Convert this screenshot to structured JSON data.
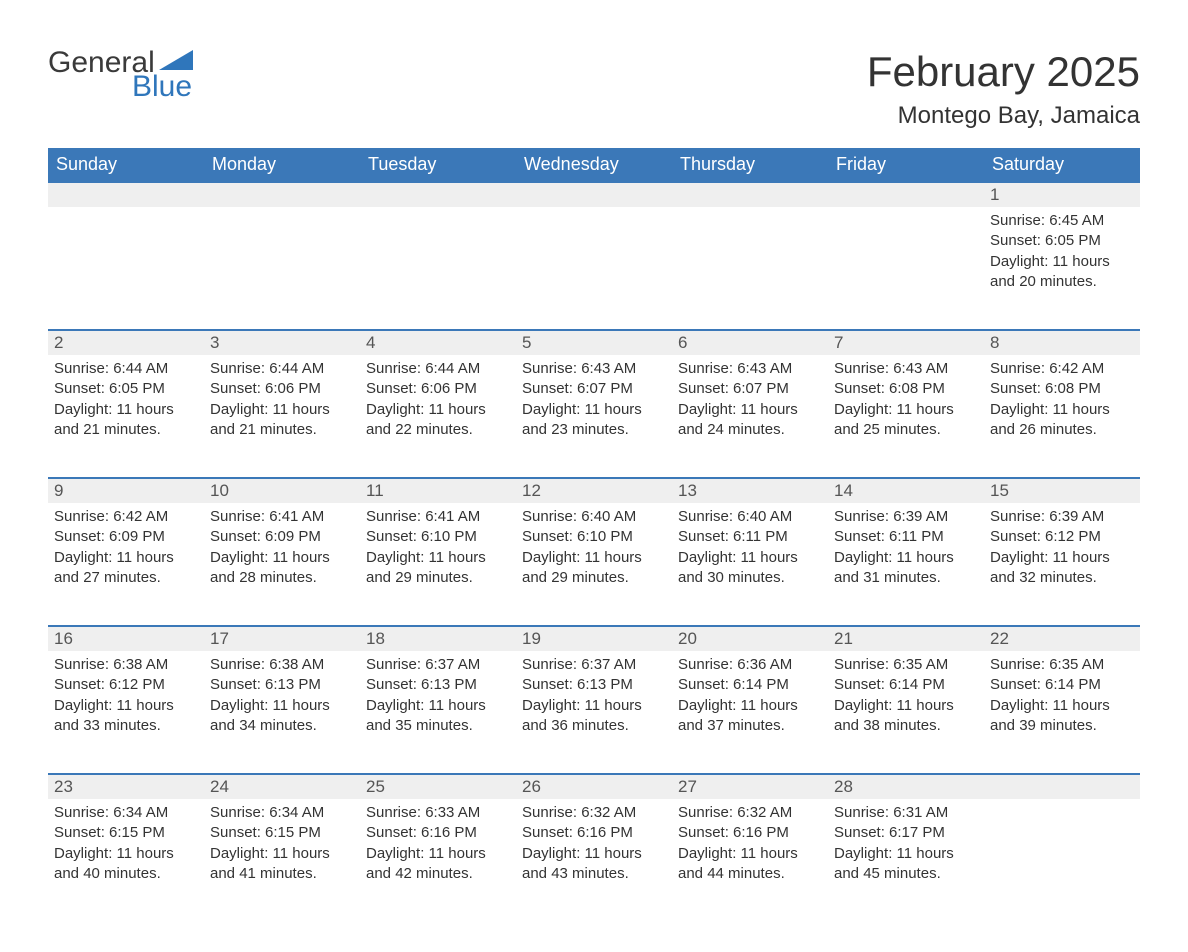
{
  "brand": {
    "word1": "General",
    "word2": "Blue",
    "accent_color": "#2f76bb"
  },
  "title": "February 2025",
  "location": "Montego Bay, Jamaica",
  "colors": {
    "header_bg": "#3b78b8",
    "header_text": "#ffffff",
    "row_border": "#3b78b8",
    "daynum_bg": "#efefef",
    "daynum_text": "#555555",
    "body_text": "#333333",
    "page_bg": "#ffffff"
  },
  "layout": {
    "columns": 7,
    "rows": 5,
    "leading_blanks": 6,
    "trailing_blanks": 1,
    "font_family": "Arial",
    "title_fontsize": 42,
    "location_fontsize": 24,
    "dayhead_fontsize": 18,
    "daynum_fontsize": 17,
    "body_fontsize": 15
  },
  "day_headers": [
    "Sunday",
    "Monday",
    "Tuesday",
    "Wednesday",
    "Thursday",
    "Friday",
    "Saturday"
  ],
  "days": [
    {
      "n": 1,
      "sunrise": "6:45 AM",
      "sunset": "6:05 PM",
      "daylight": "11 hours and 20 minutes."
    },
    {
      "n": 2,
      "sunrise": "6:44 AM",
      "sunset": "6:05 PM",
      "daylight": "11 hours and 21 minutes."
    },
    {
      "n": 3,
      "sunrise": "6:44 AM",
      "sunset": "6:06 PM",
      "daylight": "11 hours and 21 minutes."
    },
    {
      "n": 4,
      "sunrise": "6:44 AM",
      "sunset": "6:06 PM",
      "daylight": "11 hours and 22 minutes."
    },
    {
      "n": 5,
      "sunrise": "6:43 AM",
      "sunset": "6:07 PM",
      "daylight": "11 hours and 23 minutes."
    },
    {
      "n": 6,
      "sunrise": "6:43 AM",
      "sunset": "6:07 PM",
      "daylight": "11 hours and 24 minutes."
    },
    {
      "n": 7,
      "sunrise": "6:43 AM",
      "sunset": "6:08 PM",
      "daylight": "11 hours and 25 minutes."
    },
    {
      "n": 8,
      "sunrise": "6:42 AM",
      "sunset": "6:08 PM",
      "daylight": "11 hours and 26 minutes."
    },
    {
      "n": 9,
      "sunrise": "6:42 AM",
      "sunset": "6:09 PM",
      "daylight": "11 hours and 27 minutes."
    },
    {
      "n": 10,
      "sunrise": "6:41 AM",
      "sunset": "6:09 PM",
      "daylight": "11 hours and 28 minutes."
    },
    {
      "n": 11,
      "sunrise": "6:41 AM",
      "sunset": "6:10 PM",
      "daylight": "11 hours and 29 minutes."
    },
    {
      "n": 12,
      "sunrise": "6:40 AM",
      "sunset": "6:10 PM",
      "daylight": "11 hours and 29 minutes."
    },
    {
      "n": 13,
      "sunrise": "6:40 AM",
      "sunset": "6:11 PM",
      "daylight": "11 hours and 30 minutes."
    },
    {
      "n": 14,
      "sunrise": "6:39 AM",
      "sunset": "6:11 PM",
      "daylight": "11 hours and 31 minutes."
    },
    {
      "n": 15,
      "sunrise": "6:39 AM",
      "sunset": "6:12 PM",
      "daylight": "11 hours and 32 minutes."
    },
    {
      "n": 16,
      "sunrise": "6:38 AM",
      "sunset": "6:12 PM",
      "daylight": "11 hours and 33 minutes."
    },
    {
      "n": 17,
      "sunrise": "6:38 AM",
      "sunset": "6:13 PM",
      "daylight": "11 hours and 34 minutes."
    },
    {
      "n": 18,
      "sunrise": "6:37 AM",
      "sunset": "6:13 PM",
      "daylight": "11 hours and 35 minutes."
    },
    {
      "n": 19,
      "sunrise": "6:37 AM",
      "sunset": "6:13 PM",
      "daylight": "11 hours and 36 minutes."
    },
    {
      "n": 20,
      "sunrise": "6:36 AM",
      "sunset": "6:14 PM",
      "daylight": "11 hours and 37 minutes."
    },
    {
      "n": 21,
      "sunrise": "6:35 AM",
      "sunset": "6:14 PM",
      "daylight": "11 hours and 38 minutes."
    },
    {
      "n": 22,
      "sunrise": "6:35 AM",
      "sunset": "6:14 PM",
      "daylight": "11 hours and 39 minutes."
    },
    {
      "n": 23,
      "sunrise": "6:34 AM",
      "sunset": "6:15 PM",
      "daylight": "11 hours and 40 minutes."
    },
    {
      "n": 24,
      "sunrise": "6:34 AM",
      "sunset": "6:15 PM",
      "daylight": "11 hours and 41 minutes."
    },
    {
      "n": 25,
      "sunrise": "6:33 AM",
      "sunset": "6:16 PM",
      "daylight": "11 hours and 42 minutes."
    },
    {
      "n": 26,
      "sunrise": "6:32 AM",
      "sunset": "6:16 PM",
      "daylight": "11 hours and 43 minutes."
    },
    {
      "n": 27,
      "sunrise": "6:32 AM",
      "sunset": "6:16 PM",
      "daylight": "11 hours and 44 minutes."
    },
    {
      "n": 28,
      "sunrise": "6:31 AM",
      "sunset": "6:17 PM",
      "daylight": "11 hours and 45 minutes."
    }
  ],
  "labels": {
    "sunrise": "Sunrise:",
    "sunset": "Sunset:",
    "daylight": "Daylight:"
  }
}
